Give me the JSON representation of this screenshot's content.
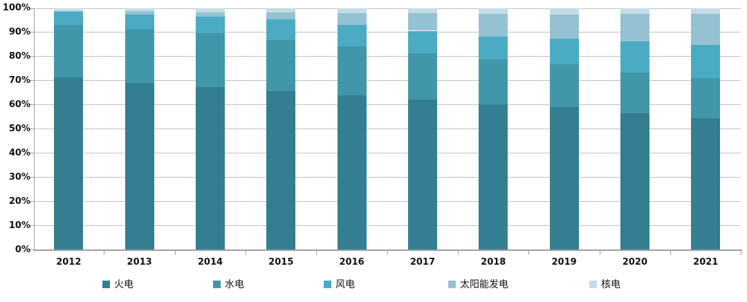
{
  "chart_data": {
    "type": "bar",
    "variant": "stacked-100-percent",
    "title": "",
    "xlabel": "",
    "ylabel": "",
    "categories": [
      "2012",
      "2013",
      "2014",
      "2015",
      "2016",
      "2017",
      "2018",
      "2019",
      "2020",
      "2021"
    ],
    "series": [
      {
        "name": "火电",
        "color": "#347E91",
        "values": [
          71.5,
          69.0,
          67.4,
          65.7,
          64.0,
          62.2,
          60.2,
          59.2,
          56.6,
          54.6
        ]
      },
      {
        "name": "水电",
        "color": "#4197A9",
        "values": [
          21.7,
          22.4,
          22.2,
          21.2,
          20.2,
          19.3,
          18.5,
          17.7,
          16.8,
          16.4
        ]
      },
      {
        "name": "风电",
        "color": "#4AABC3",
        "values": [
          5.3,
          6.0,
          7.0,
          8.6,
          9.0,
          9.2,
          9.7,
          10.4,
          12.8,
          13.8
        ]
      },
      {
        "name": "太阳能发电",
        "color": "#95C2D3",
        "values": [
          0.3,
          1.4,
          1.8,
          2.9,
          4.7,
          7.3,
          9.2,
          10.2,
          11.5,
          12.9
        ]
      },
      {
        "name": "核电",
        "color": "#C4DCE6",
        "values": [
          1.1,
          1.2,
          1.5,
          1.7,
          2.0,
          2.0,
          2.4,
          2.4,
          2.3,
          2.2
        ]
      }
    ],
    "y_axis": {
      "min": 0,
      "max": 100,
      "tick_labels": [
        "0%",
        "10%",
        "20%",
        "30%",
        "40%",
        "50%",
        "60%",
        "70%",
        "80%",
        "90%",
        "100%"
      ]
    },
    "legend": {
      "position": "bottom",
      "entries": [
        "火电",
        "水电",
        "风电",
        "太阳能发电",
        "核电"
      ]
    },
    "grid": true,
    "colors": {
      "gridline": "#bfbfbf",
      "axis": "#9e9e9e",
      "text": "#111111",
      "background": "#ffffff"
    }
  }
}
